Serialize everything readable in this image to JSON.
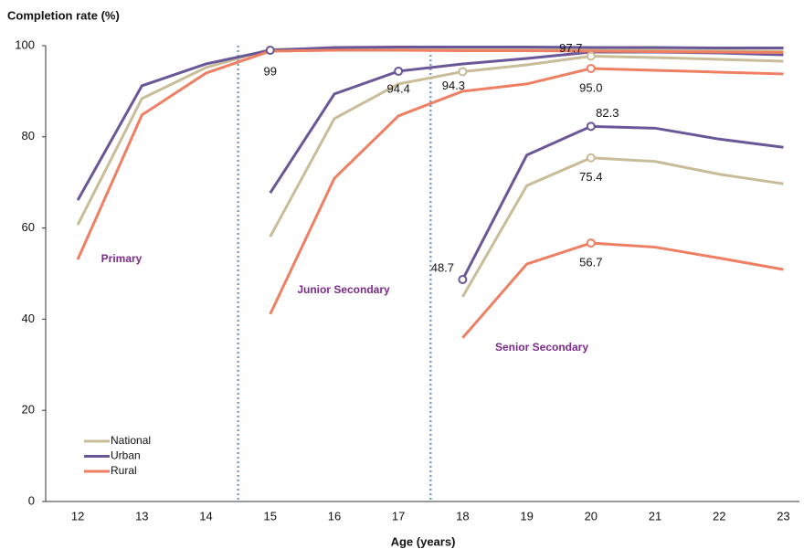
{
  "chart_data": {
    "type": "line",
    "title": "Completion rate (%)",
    "x_label": "Age (years)",
    "x": [
      12,
      13,
      14,
      15,
      16,
      17,
      18,
      19,
      20,
      21,
      22,
      23
    ],
    "xlim": [
      11.5,
      23.25
    ],
    "xticks": [
      12,
      13,
      14,
      15,
      16,
      17,
      18,
      19,
      20,
      21,
      22,
      23
    ],
    "ylim": [
      0,
      100
    ],
    "yticks": [
      0,
      20,
      40,
      60,
      80,
      100
    ],
    "grid": false,
    "legend": "lower left",
    "dividers": [
      14.5,
      17.5
    ],
    "annotations": [
      "Primary",
      "Junior Secondary",
      "Senior Secondary"
    ],
    "series": [
      {
        "name": "National",
        "color": "#c8bd98",
        "segments": [
          {
            "values": [
              60.7,
              88.4,
              95.2,
              99.2,
              99.3,
              99.3,
              99.2,
              99.2,
              99.1,
              99.0,
              98.9,
              98.8
            ],
            "value_labels": [
              null,
              null,
              null,
              null,
              null,
              null,
              null,
              null,
              null,
              null,
              null,
              null
            ]
          },
          {
            "values": [
              null,
              null,
              null,
              58.1,
              84.0,
              91.6,
              94.3,
              95.8,
              97.7,
              97.4,
              97.0,
              96.6
            ],
            "value_labels": [
              null,
              null,
              null,
              null,
              null,
              null,
              "94.3",
              null,
              "97.7",
              null,
              null,
              null
            ]
          },
          {
            "values": [
              null,
              null,
              null,
              null,
              null,
              null,
              44.9,
              69.3,
              75.4,
              74.6,
              71.8,
              69.7
            ],
            "value_labels": [
              null,
              null,
              null,
              null,
              null,
              null,
              null,
              null,
              "75.4",
              null,
              null,
              null
            ]
          }
        ]
      },
      {
        "name": "Urban",
        "color": "#6a5797",
        "segments": [
          {
            "values": [
              66.1,
              91.2,
              96.0,
              99,
              99.6,
              99.7,
              99.7,
              99.7,
              99.6,
              99.6,
              99.5,
              99.5
            ],
            "value_labels": [
              null,
              null,
              null,
              "99",
              null,
              null,
              null,
              null,
              null,
              null,
              null,
              null
            ]
          },
          {
            "values": [
              null,
              null,
              null,
              67.7,
              89.4,
              94.4,
              96.0,
              97.2,
              98.6,
              98.6,
              98.4,
              98.0
            ],
            "value_labels": [
              null,
              null,
              "",
              null,
              null,
              "94.4",
              null,
              null,
              null,
              null,
              null,
              null
            ]
          },
          {
            "values": [
              null,
              null,
              null,
              null,
              null,
              null,
              48.7,
              76.0,
              82.3,
              81.9,
              79.5,
              77.7
            ],
            "value_labels": [
              null,
              null,
              null,
              null,
              null,
              null,
              "48.7",
              null,
              "82.3",
              null,
              null,
              null
            ]
          }
        ]
      },
      {
        "name": "Rural",
        "color": "#ef7f63",
        "segments": [
          {
            "values": [
              53.1,
              84.8,
              94.0,
              98.8,
              99.0,
              99.0,
              98.9,
              98.9,
              98.8,
              98.7,
              98.6,
              98.5
            ],
            "value_labels": [
              null,
              null,
              null,
              null,
              null,
              null,
              null,
              null,
              null,
              null,
              null,
              null
            ]
          },
          {
            "values": [
              null,
              null,
              null,
              41.1,
              70.9,
              84.6,
              90.0,
              91.6,
              95.0,
              94.6,
              94.2,
              93.8
            ],
            "value_labels": [
              null,
              null,
              null,
              null,
              null,
              null,
              null,
              null,
              "95.0",
              null,
              null,
              null
            ]
          },
          {
            "values": [
              null,
              null,
              null,
              null,
              null,
              null,
              35.9,
              52.1,
              56.7,
              55.8,
              53.4,
              50.9
            ],
            "value_labels": [
              null,
              null,
              null,
              null,
              null,
              null,
              null,
              null,
              "56.7",
              null,
              null,
              null
            ]
          }
        ]
      }
    ]
  }
}
